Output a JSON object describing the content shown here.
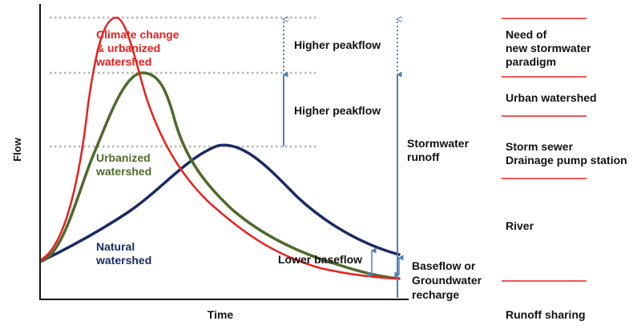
{
  "axes": {
    "y_label": "Flow",
    "x_label": "Time"
  },
  "curves": [
    {
      "name": "climate-change-urbanized",
      "label_lines": [
        "Climate change",
        "& urbanized",
        "watershed"
      ],
      "color": "#e8201e"
    },
    {
      "name": "urbanized",
      "label_lines": [
        "Urbanized",
        "watershed"
      ],
      "color": "#4f6a2d"
    },
    {
      "name": "natural",
      "label_lines": [
        "Natural",
        "watershed"
      ],
      "color": "#1b2a66"
    }
  ],
  "annotations": {
    "higher_peakflow_upper": "Higher peakflow",
    "higher_peakflow_lower": "Higher peakflow",
    "stormwater_runoff": [
      "Stormwater",
      "runoff"
    ],
    "lower_baseflow": "Lower baseflow",
    "baseflow_recharge": [
      "Baseflow or",
      "Groundwater",
      "recharge"
    ]
  },
  "runoff_sharing": {
    "items": [
      [
        "Need of",
        "new stormwater",
        "paradigm"
      ],
      [
        "Urban watershed"
      ],
      [
        "Storm sewer",
        "Drainage pump station"
      ],
      [
        "River"
      ]
    ],
    "footer": "Runoff sharing"
  },
  "colors": {
    "red": "#e8201e",
    "green": "#4f6a2d",
    "navy": "#1b2a66",
    "arrow": "#4f7fba",
    "gridline": "#b5b5b5",
    "axis": "#111111",
    "text": "#111111"
  }
}
